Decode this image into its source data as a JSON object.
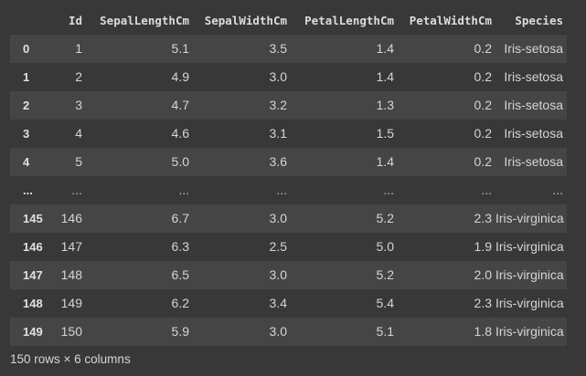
{
  "dataframe": {
    "index_header": "",
    "columns": [
      "Id",
      "SepalLengthCm",
      "SepalWidthCm",
      "PetalLengthCm",
      "PetalWidthCm",
      "Species"
    ],
    "rows": [
      {
        "index": "0",
        "cells": [
          "1",
          "5.1",
          "3.5",
          "1.4",
          "0.2",
          "Iris-setosa"
        ]
      },
      {
        "index": "1",
        "cells": [
          "2",
          "4.9",
          "3.0",
          "1.4",
          "0.2",
          "Iris-setosa"
        ]
      },
      {
        "index": "2",
        "cells": [
          "3",
          "4.7",
          "3.2",
          "1.3",
          "0.2",
          "Iris-setosa"
        ]
      },
      {
        "index": "3",
        "cells": [
          "4",
          "4.6",
          "3.1",
          "1.5",
          "0.2",
          "Iris-setosa"
        ]
      },
      {
        "index": "4",
        "cells": [
          "5",
          "5.0",
          "3.6",
          "1.4",
          "0.2",
          "Iris-setosa"
        ]
      },
      {
        "index": "...",
        "cells": [
          "...",
          "...",
          "...",
          "...",
          "...",
          "..."
        ]
      },
      {
        "index": "145",
        "cells": [
          "146",
          "6.7",
          "3.0",
          "5.2",
          "2.3",
          "Iris-virginica"
        ]
      },
      {
        "index": "146",
        "cells": [
          "147",
          "6.3",
          "2.5",
          "5.0",
          "1.9",
          "Iris-virginica"
        ]
      },
      {
        "index": "147",
        "cells": [
          "148",
          "6.5",
          "3.0",
          "5.2",
          "2.0",
          "Iris-virginica"
        ]
      },
      {
        "index": "148",
        "cells": [
          "149",
          "6.2",
          "3.4",
          "5.4",
          "2.3",
          "Iris-virginica"
        ]
      },
      {
        "index": "149",
        "cells": [
          "150",
          "5.9",
          "3.0",
          "5.1",
          "1.8",
          "Iris-virginica"
        ]
      }
    ],
    "shape_text": "150 rows × 6 columns"
  }
}
